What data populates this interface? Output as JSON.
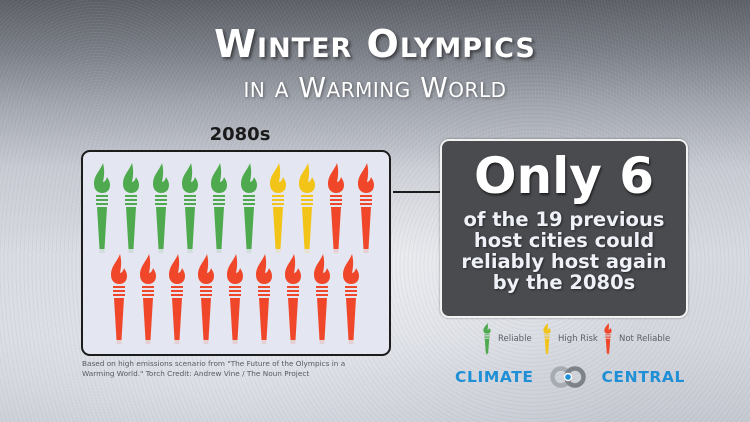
{
  "header": {
    "title": "Winter Olympics",
    "subtitle": "in a Warming World"
  },
  "torch_panel": {
    "decade_label": "2080s",
    "total_cities": 19,
    "row1": [
      "reliable",
      "reliable",
      "reliable",
      "reliable",
      "reliable",
      "reliable",
      "high-risk",
      "high-risk",
      "not-reliable",
      "not-reliable"
    ],
    "row2": [
      "not-reliable",
      "not-reliable",
      "not-reliable",
      "not-reliable",
      "not-reliable",
      "not-reliable",
      "not-reliable",
      "not-reliable",
      "not-reliable"
    ],
    "counts": {
      "reliable": 6,
      "high_risk": 2,
      "not_reliable": 11
    }
  },
  "stat_box": {
    "headline": "Only 6",
    "lines": [
      "of the 19 previous",
      "host cities could",
      "reliably host again",
      "by the 2080s"
    ]
  },
  "legend": {
    "items": [
      {
        "label": "Reliable",
        "color": "#4faa4f",
        "icon": "torch-icon"
      },
      {
        "label": "High Risk",
        "color": "#f2c418",
        "icon": "torch-icon"
      },
      {
        "label": "Not Reliable",
        "color": "#f0472a",
        "icon": "torch-icon"
      }
    ]
  },
  "credit": {
    "line1": "Based on high emissions scenario from \"The Future of the Olympics in a",
    "line2": "Warming World.\"  Torch Credit: Andrew Vine / The Noun Project"
  },
  "brand": {
    "left_word": "CLIMATE",
    "right_word": "CENTRAL",
    "color": "#1f8fd6"
  },
  "colors": {
    "reliable": "#4faa4f",
    "high-risk": "#f2c418",
    "not-reliable": "#f0472a",
    "panel_bg": "#e4e7f1",
    "stat_bg": "#4a4b4f"
  }
}
